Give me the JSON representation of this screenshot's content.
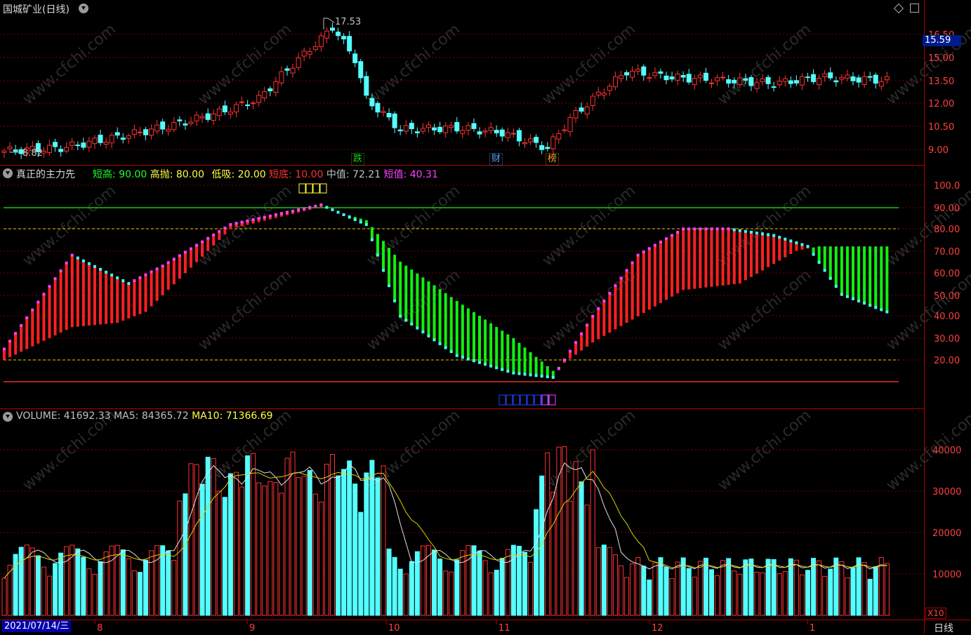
{
  "window": {
    "title": "国城矿业(日线)",
    "period_label": "日线",
    "date_cursor": "2021/07/14/三"
  },
  "price_panel": {
    "current_price": "15.59",
    "high_marker": "17.53",
    "low_marker": "8.82",
    "axis_ticks": [
      "16.50",
      "15.00",
      "13.50",
      "12.00",
      "10.50",
      "9.00"
    ],
    "event_tags": [
      {
        "text": "跌",
        "color": "#13d313"
      },
      {
        "text": "财",
        "color": "#5aa0ff"
      },
      {
        "text": "榜",
        "color": "#ff9b2a"
      }
    ]
  },
  "indicator_panel": {
    "name": "真正的主力先",
    "params": [
      {
        "label": "短高",
        "sep": ": ",
        "value": "90.00",
        "color": "#20ff20"
      },
      {
        "label": "高抛",
        "sep": ": ",
        "value": "80.00",
        "color": "#ffff40"
      },
      {
        "label": "低吸",
        "sep": ": ",
        "value": "20.00",
        "color": "#ffff40"
      },
      {
        "label": "短底",
        "sep": ": ",
        "value": "10.00",
        "color": "#ff3030"
      },
      {
        "label": "中值",
        "sep": ": ",
        "value": "72.21",
        "color": "#c0c0c0"
      },
      {
        "label": "短值",
        "sep": ": ",
        "value": "40.31",
        "color": "#ff40ff"
      }
    ],
    "axis_ticks": [
      "100.0",
      "90.00",
      "80.00",
      "70.00",
      "60.00",
      "50.00",
      "40.00",
      "30.00",
      "20.00"
    ]
  },
  "volume_panel": {
    "params": [
      {
        "label": "VOLUME",
        "sep": ": ",
        "value": "41692.33",
        "color": "#c0c0c0"
      },
      {
        "label": "MA5",
        "sep": ": ",
        "value": "84365.72",
        "color": "#c0c0c0"
      },
      {
        "label": "MA10",
        "sep": ": ",
        "value": "71366.69",
        "color": "#ffff40"
      }
    ],
    "axis_ticks": [
      "40000",
      "30000",
      "20000",
      "10000"
    ],
    "unit": "X10"
  },
  "time_axis": [
    "8",
    "9",
    "10",
    "11",
    "12",
    "1"
  ],
  "watermark": "www.cfchi.com",
  "colors": {
    "up": "#ff3232",
    "down": "#54ffff",
    "grid": "#7a0000",
    "separator": "#b00000"
  },
  "icons": [
    "chevron-down-icon",
    "diamond-icon",
    "window-restore-icon"
  ]
}
